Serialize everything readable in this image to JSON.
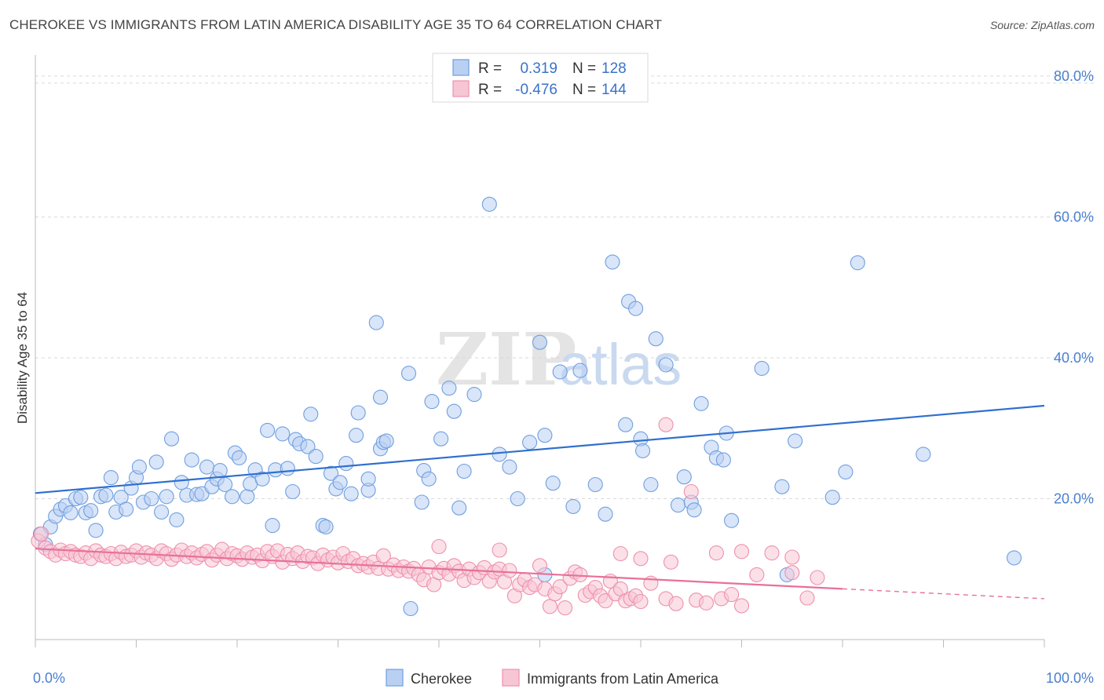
{
  "header": {
    "title": "CHEROKEE VS IMMIGRANTS FROM LATIN AMERICA DISABILITY AGE 35 TO 64 CORRELATION CHART",
    "source": "Source: ZipAtlas.com"
  },
  "watermark": {
    "zip": "ZIP",
    "atlas": "atlas"
  },
  "chart_data": {
    "type": "scatter",
    "ylabel": "Disability Age 35 to 64",
    "xlim": [
      0,
      100
    ],
    "ylim": [
      0,
      83
    ],
    "x_tick_labels": [
      "0.0%",
      "100.0%"
    ],
    "y_ticks": [
      20,
      40,
      60,
      80
    ],
    "y_tick_labels": [
      "20.0%",
      "40.0%",
      "60.0%",
      "80.0%"
    ],
    "grid": true,
    "legend_position": "bottom",
    "stats": [
      {
        "r_label": "R =",
        "r_value": "0.319",
        "n_label": "N =",
        "n_value": "128"
      },
      {
        "r_label": "R =",
        "r_value": "-0.476",
        "n_label": "N =",
        "n_value": "144"
      }
    ],
    "series": [
      {
        "name": "Cherokee",
        "color": "#6f9fe0",
        "fill": "#b9d0f2",
        "trend": {
          "x": [
            0,
            100
          ],
          "y": [
            20.8,
            33.2
          ]
        },
        "points": [
          [
            0.5,
            15
          ],
          [
            1,
            13.5
          ],
          [
            1.5,
            16
          ],
          [
            2,
            17.5
          ],
          [
            2.5,
            18.5
          ],
          [
            3,
            19
          ],
          [
            3.5,
            18
          ],
          [
            4,
            20
          ],
          [
            4.5,
            20.2
          ],
          [
            5,
            18
          ],
          [
            5.5,
            18.3
          ],
          [
            6,
            15.5
          ],
          [
            6.5,
            20.3
          ],
          [
            7,
            20.5
          ],
          [
            7.5,
            23
          ],
          [
            8,
            18.1
          ],
          [
            8.5,
            20.2
          ],
          [
            9,
            18.5
          ],
          [
            9.5,
            21.5
          ],
          [
            10,
            23
          ],
          [
            10.3,
            24.5
          ],
          [
            10.7,
            19.5
          ],
          [
            11.5,
            20
          ],
          [
            12,
            25.2
          ],
          [
            12.5,
            18.1
          ],
          [
            13,
            20.3
          ],
          [
            13.5,
            28.5
          ],
          [
            14,
            17
          ],
          [
            14.5,
            22.3
          ],
          [
            15,
            20.5
          ],
          [
            15.5,
            25.5
          ],
          [
            16,
            20.6
          ],
          [
            16.5,
            20.7
          ],
          [
            17,
            24.5
          ],
          [
            17.5,
            21.7
          ],
          [
            18,
            22.8
          ],
          [
            18.3,
            24
          ],
          [
            18.8,
            22
          ],
          [
            19.5,
            20.3
          ],
          [
            19.8,
            26.5
          ],
          [
            20.2,
            25.8
          ],
          [
            21,
            20.3
          ],
          [
            21.3,
            22.1
          ],
          [
            21.8,
            24.1
          ],
          [
            22.5,
            22.8
          ],
          [
            23,
            29.7
          ],
          [
            23.5,
            16.2
          ],
          [
            23.8,
            24.1
          ],
          [
            24.5,
            29.2
          ],
          [
            25,
            24.3
          ],
          [
            25.5,
            21
          ],
          [
            25.8,
            28.4
          ],
          [
            26.2,
            27.8
          ],
          [
            27,
            27.4
          ],
          [
            27.3,
            32
          ],
          [
            27.8,
            26
          ],
          [
            28.5,
            16.2
          ],
          [
            28.8,
            16
          ],
          [
            29.3,
            23.6
          ],
          [
            29.8,
            21.4
          ],
          [
            30.2,
            22.3
          ],
          [
            30.8,
            25
          ],
          [
            31.3,
            20.7
          ],
          [
            31.8,
            29
          ],
          [
            32,
            32.2
          ],
          [
            33,
            21.2
          ],
          [
            33,
            22.8
          ],
          [
            34.2,
            27.1
          ],
          [
            34.5,
            28
          ],
          [
            34.8,
            28.2
          ],
          [
            34.2,
            34.4
          ],
          [
            33.8,
            45
          ],
          [
            37,
            37.8
          ],
          [
            38.3,
            19.5
          ],
          [
            38.5,
            24
          ],
          [
            39,
            22.8
          ],
          [
            39.3,
            33.8
          ],
          [
            40.2,
            28.5
          ],
          [
            41,
            35.7
          ],
          [
            41.5,
            32.4
          ],
          [
            42,
            18.7
          ],
          [
            42.5,
            23.9
          ],
          [
            43.5,
            34.8
          ],
          [
            45,
            61.8
          ],
          [
            46,
            26.3
          ],
          [
            47,
            24.5
          ],
          [
            47.8,
            20
          ],
          [
            49,
            28
          ],
          [
            50,
            42.2
          ],
          [
            50.5,
            29
          ],
          [
            51.3,
            22.2
          ],
          [
            52,
            38
          ],
          [
            53.3,
            18.9
          ],
          [
            54,
            38.2
          ],
          [
            55.5,
            22
          ],
          [
            56.5,
            17.8
          ],
          [
            57.2,
            53.6
          ],
          [
            58.8,
            48
          ],
          [
            59.5,
            47
          ],
          [
            58.5,
            30.5
          ],
          [
            60,
            28.5
          ],
          [
            60.2,
            26.8
          ],
          [
            61,
            22
          ],
          [
            61.5,
            42.7
          ],
          [
            62.5,
            39
          ],
          [
            63.7,
            19.1
          ],
          [
            64.3,
            23.1
          ],
          [
            65,
            19.5
          ],
          [
            65.3,
            18.4
          ],
          [
            66,
            33.5
          ],
          [
            67,
            27.3
          ],
          [
            67.5,
            25.8
          ],
          [
            68.2,
            25.5
          ],
          [
            68.5,
            29.3
          ],
          [
            69,
            16.9
          ],
          [
            72,
            38.5
          ],
          [
            74,
            21.7
          ],
          [
            75.3,
            28.2
          ],
          [
            79,
            20.2
          ],
          [
            80.3,
            23.8
          ],
          [
            81.5,
            53.5
          ],
          [
            88,
            26.3
          ],
          [
            97,
            11.6
          ],
          [
            37.2,
            4.4
          ],
          [
            50.5,
            9.2
          ],
          [
            74.5,
            9.2
          ]
        ]
      },
      {
        "name": "Immigrants from Latin America",
        "color": "#ee90ad",
        "fill": "#f7c6d5",
        "trend": {
          "x": [
            0,
            80
          ],
          "y": [
            12.9,
            7.2
          ]
        },
        "trend_dashed": {
          "x": [
            80,
            100
          ],
          "y": [
            7.2,
            5.8
          ]
        },
        "points": [
          [
            0.3,
            14
          ],
          [
            0.6,
            15
          ],
          [
            1,
            13
          ],
          [
            1.5,
            12.5
          ],
          [
            2,
            12
          ],
          [
            2.5,
            12.7
          ],
          [
            3,
            12.2
          ],
          [
            3.5,
            12.5
          ],
          [
            4,
            12
          ],
          [
            4.5,
            11.8
          ],
          [
            5,
            12.3
          ],
          [
            5.5,
            11.5
          ],
          [
            6,
            12.6
          ],
          [
            6.5,
            12
          ],
          [
            7,
            11.8
          ],
          [
            7.5,
            12.2
          ],
          [
            8,
            11.5
          ],
          [
            8.5,
            12.4
          ],
          [
            9,
            11.8
          ],
          [
            9.5,
            12
          ],
          [
            10,
            12.6
          ],
          [
            10.5,
            11.7
          ],
          [
            11,
            12.3
          ],
          [
            11.5,
            12
          ],
          [
            12,
            11.5
          ],
          [
            12.5,
            12.6
          ],
          [
            13,
            12.2
          ],
          [
            13.5,
            11.4
          ],
          [
            14,
            12
          ],
          [
            14.5,
            12.7
          ],
          [
            15,
            11.8
          ],
          [
            15.5,
            12.3
          ],
          [
            16,
            11.6
          ],
          [
            16.5,
            12.1
          ],
          [
            17,
            12.5
          ],
          [
            17.5,
            11.3
          ],
          [
            18,
            12
          ],
          [
            18.5,
            12.8
          ],
          [
            19,
            11.5
          ],
          [
            19.5,
            12.2
          ],
          [
            20,
            11.9
          ],
          [
            20.5,
            11.4
          ],
          [
            21,
            12.3
          ],
          [
            21.5,
            11.7
          ],
          [
            22,
            12
          ],
          [
            22.5,
            11.2
          ],
          [
            23,
            12.5
          ],
          [
            23.5,
            11.8
          ],
          [
            24,
            12.6
          ],
          [
            24.5,
            11
          ],
          [
            25,
            12.1
          ],
          [
            25.5,
            11.5
          ],
          [
            26,
            12.3
          ],
          [
            26.5,
            11.1
          ],
          [
            27,
            11.8
          ],
          [
            27.5,
            11.6
          ],
          [
            28,
            10.8
          ],
          [
            28.5,
            12
          ],
          [
            29,
            11.3
          ],
          [
            29.5,
            11.7
          ],
          [
            30,
            10.9
          ],
          [
            30.5,
            12.2
          ],
          [
            31,
            11.1
          ],
          [
            31.5,
            11.5
          ],
          [
            32,
            10.5
          ],
          [
            32.5,
            10.8
          ],
          [
            33,
            10.3
          ],
          [
            33.5,
            11
          ],
          [
            34,
            10.1
          ],
          [
            34.5,
            11.9
          ],
          [
            35,
            10
          ],
          [
            35.5,
            10.6
          ],
          [
            36,
            9.8
          ],
          [
            36.5,
            10.3
          ],
          [
            37,
            9.7
          ],
          [
            37.5,
            10.1
          ],
          [
            38,
            9.2
          ],
          [
            38.5,
            8.5
          ],
          [
            39,
            10.3
          ],
          [
            39.5,
            7.8
          ],
          [
            40,
            9.5
          ],
          [
            40.5,
            10.1
          ],
          [
            41,
            9.3
          ],
          [
            41.5,
            10.5
          ],
          [
            42,
            9.7
          ],
          [
            42.5,
            8.4
          ],
          [
            43,
            10
          ],
          [
            43.5,
            8.8
          ],
          [
            44,
            9.5
          ],
          [
            44.5,
            10.2
          ],
          [
            45,
            8.3
          ],
          [
            45.5,
            9.6
          ],
          [
            46,
            10
          ],
          [
            46.5,
            8.2
          ],
          [
            47,
            9.8
          ],
          [
            47.5,
            6.2
          ],
          [
            48,
            7.8
          ],
          [
            48.5,
            8.5
          ],
          [
            49,
            7.4
          ],
          [
            49.5,
            7.8
          ],
          [
            50,
            10.5
          ],
          [
            50.5,
            7.2
          ],
          [
            51,
            4.7
          ],
          [
            51.5,
            6.5
          ],
          [
            52,
            7.5
          ],
          [
            52.5,
            4.5
          ],
          [
            53,
            8.7
          ],
          [
            53.5,
            9.6
          ],
          [
            54,
            9.2
          ],
          [
            54.5,
            6.3
          ],
          [
            55,
            6.8
          ],
          [
            55.5,
            7.4
          ],
          [
            56,
            6.2
          ],
          [
            56.5,
            5.5
          ],
          [
            57,
            8.3
          ],
          [
            57.5,
            6.5
          ],
          [
            58,
            7.2
          ],
          [
            58.5,
            5.5
          ],
          [
            59,
            5.8
          ],
          [
            59.5,
            6.2
          ],
          [
            60,
            5.4
          ],
          [
            61,
            8
          ],
          [
            62.5,
            5.8
          ],
          [
            63.5,
            5.1
          ],
          [
            65.5,
            5.6
          ],
          [
            66.5,
            5.2
          ],
          [
            68,
            5.8
          ],
          [
            69,
            6.4
          ],
          [
            70,
            4.8
          ],
          [
            71.5,
            9.2
          ],
          [
            76.5,
            5.9
          ],
          [
            75,
            9.5
          ],
          [
            77.5,
            8.8
          ],
          [
            67.5,
            12.3
          ],
          [
            62.5,
            30.5
          ],
          [
            65,
            21
          ],
          [
            60,
            11.5
          ],
          [
            63,
            11
          ],
          [
            70,
            12.5
          ],
          [
            75,
            11.7
          ],
          [
            40,
            13.2
          ],
          [
            46,
            12.7
          ],
          [
            58,
            12.2
          ],
          [
            73,
            12.3
          ]
        ]
      }
    ]
  }
}
